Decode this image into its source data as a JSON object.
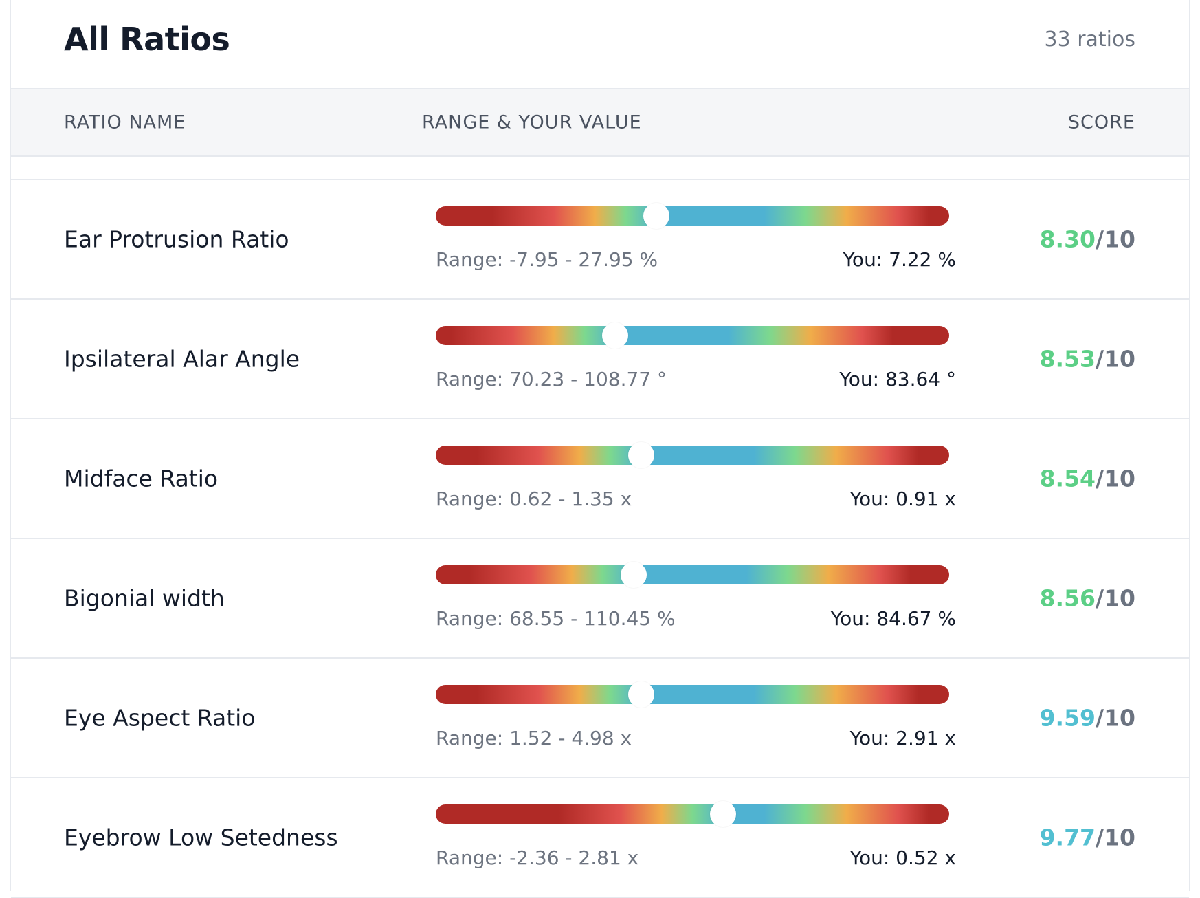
{
  "header": {
    "title": "All Ratios",
    "count": "33 ratios"
  },
  "columns": {
    "name": "RATIO NAME",
    "range": "RANGE & YOUR VALUE",
    "score": "SCORE"
  },
  "colors": {
    "score_green": "#5ccf86",
    "score_teal": "#52bfd1",
    "bar_red": "#b02a26",
    "bar_blue": "#4fb2d2"
  },
  "rows": [
    {
      "name": "Ear Protrusion Ratio",
      "range": "Range: -7.95 - 27.95 %",
      "you": "You: 7.22 %",
      "score": "8.30",
      "score_max": "/10",
      "marker": 0.43,
      "score_color": "#5ccf86"
    },
    {
      "name": "Ipsilateral Alar Angle",
      "range": "Range: 70.23 - 108.77 °",
      "you": "You: 83.64 °",
      "score": "8.53",
      "score_max": "/10",
      "marker": 0.35,
      "score_color": "#5ccf86"
    },
    {
      "name": "Midface Ratio",
      "range": "Range: 0.62 - 1.35 x",
      "you": "You: 0.91 x",
      "score": "8.54",
      "score_max": "/10",
      "marker": 0.4,
      "score_color": "#5ccf86"
    },
    {
      "name": "Bigonial width",
      "range": "Range: 68.55 - 110.45 %",
      "you": "You: 84.67 %",
      "score": "8.56",
      "score_max": "/10",
      "marker": 0.385,
      "score_color": "#5ccf86"
    },
    {
      "name": "Eye Aspect Ratio",
      "range": "Range: 1.52 - 4.98 x",
      "you": "You: 2.91 x",
      "score": "9.59",
      "score_max": "/10",
      "marker": 0.4,
      "score_color": "#52bfd1"
    },
    {
      "name": "Eyebrow Low Setedness",
      "range": "Range: -2.36 - 2.81 x",
      "you": "You: 0.52 x",
      "score": "9.77",
      "score_max": "/10",
      "marker": 0.56,
      "score_color": "#52bfd1"
    }
  ]
}
